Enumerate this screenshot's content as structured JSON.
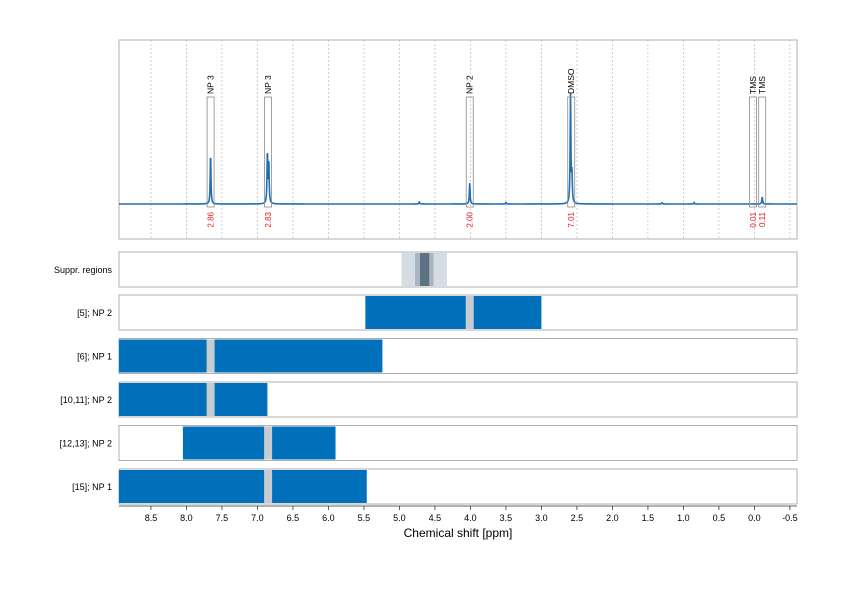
{
  "colors": {
    "spectrum": "#1f6fb2",
    "bar": "#0070bb",
    "marker": "#c6ccd1",
    "integral": "#e41a1c",
    "panel_border": "#b0b0b0",
    "grid": "#bdbdbd",
    "suppr_light": "#d5dde4",
    "suppr_mid": "#a9b5c0",
    "suppr_dark": "#5f7281"
  },
  "chart_data": {
    "type": "line",
    "xlabel": "Chemical shift [ppm]",
    "x_reversed": true,
    "xlim": [
      8.95,
      -0.6
    ],
    "x_ticks": [
      8.5,
      8.0,
      7.5,
      7.0,
      6.5,
      6.0,
      5.5,
      5.0,
      4.5,
      4.0,
      3.5,
      3.0,
      2.5,
      2.0,
      1.5,
      1.0,
      0.5,
      0.0,
      -0.5
    ],
    "x_tick_labels": [
      "8.5",
      "8.0",
      "7.5",
      "7.0",
      "6.5",
      "6.0",
      "5.5",
      "5.0",
      "4.5",
      "4.0",
      "3.5",
      "3.0",
      "2.5",
      "2.0",
      "1.5",
      "1.0",
      "0.5",
      "0.0",
      "-0.5"
    ],
    "grid": true,
    "spectrum": {
      "peaks": [
        {
          "x": 7.66,
          "height": 0.36
        },
        {
          "x": 6.86,
          "height": 0.37
        },
        {
          "x": 6.84,
          "height": 0.3
        },
        {
          "x": 4.01,
          "height": 0.15
        },
        {
          "x": 2.59,
          "height": 0.78
        },
        {
          "x": 2.57,
          "height": 0.2
        },
        {
          "x": -0.11,
          "height": 0.05
        },
        {
          "x": 4.72,
          "height": 0.015
        },
        {
          "x": 3.5,
          "height": 0.01
        },
        {
          "x": 1.3,
          "height": 0.01
        },
        {
          "x": 0.85,
          "height": 0.01
        }
      ]
    },
    "peak_annotations": [
      {
        "x": 7.66,
        "label": "NP 3",
        "integral": "2.86",
        "height": 0.36
      },
      {
        "x": 6.85,
        "label": "NP 3",
        "integral": "2.83",
        "height": 0.37
      },
      {
        "x": 4.01,
        "label": "NP 2",
        "integral": "2.00",
        "height": 0.15
      },
      {
        "x": 2.58,
        "label": "DMSO",
        "integral": "7.01",
        "height": 0.78
      },
      {
        "x": 0.02,
        "label": "TMS",
        "integral": "0.01",
        "height": 0.0
      },
      {
        "x": -0.11,
        "label": "TMS",
        "integral": "0.11",
        "height": 0.05
      }
    ],
    "suppression_regions": {
      "label": "Suppr. regions",
      "light": [
        4.97,
        4.33
      ],
      "mid": [
        4.78,
        4.52
      ],
      "dark": [
        4.71,
        4.58
      ]
    },
    "rows": [
      {
        "label": "[5]; NP 2",
        "range": [
          5.48,
          3.0
        ],
        "markers": [
          4.01
        ]
      },
      {
        "label": "[6]; NP 1",
        "range": [
          8.95,
          5.24
        ],
        "markers": [
          7.66
        ]
      },
      {
        "label": "[10,11]; NP 2",
        "range": [
          8.95,
          6.86
        ],
        "markers": [
          7.66
        ]
      },
      {
        "label": "[12,13]; NP 2",
        "range": [
          8.05,
          5.9
        ],
        "markers": [
          6.85
        ]
      },
      {
        "label": "[15]; NP 1",
        "range": [
          8.95,
          5.46
        ],
        "markers": [
          6.85
        ]
      }
    ]
  }
}
